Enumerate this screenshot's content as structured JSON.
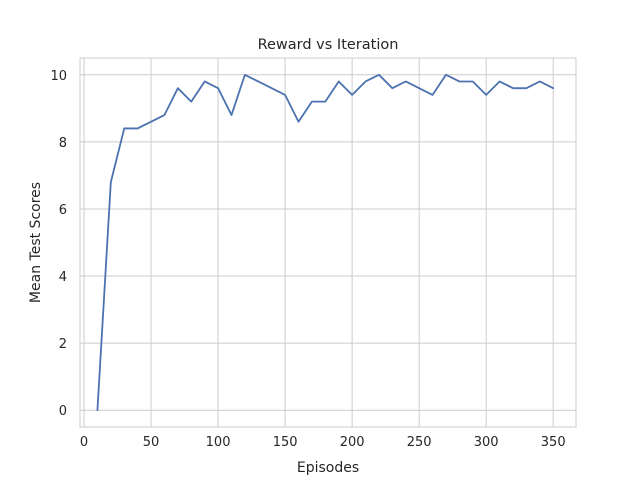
{
  "chart_data": {
    "type": "line",
    "title": "Reward vs Iteration",
    "xlabel": "Episodes",
    "ylabel": "Mean Test Scores",
    "xlim": [
      -3,
      367
    ],
    "ylim": [
      -0.5,
      10.5
    ],
    "xticks": [
      0,
      50,
      100,
      150,
      200,
      250,
      300,
      350
    ],
    "yticks": [
      0,
      2,
      4,
      6,
      8,
      10
    ],
    "grid": true,
    "line_color": "#4c72b0",
    "grid_color": "#cccccc",
    "series": [
      {
        "x": [
          10,
          20,
          30,
          40,
          50,
          60,
          70,
          80,
          90,
          100,
          110,
          120,
          130,
          140,
          150,
          160,
          170,
          180,
          190,
          200,
          210,
          220,
          230,
          240,
          250,
          260,
          270,
          280,
          290,
          300,
          310,
          320,
          330,
          340,
          350
        ],
        "y": [
          0,
          6.8,
          8.4,
          8.4,
          8.6,
          8.8,
          9.6,
          9.2,
          9.8,
          9.6,
          8.8,
          10,
          9.8,
          9.6,
          9.4,
          8.6,
          9.2,
          9.2,
          9.8,
          9.4,
          9.8,
          10,
          9.6,
          9.8,
          9.6,
          9.4,
          10,
          9.8,
          9.8,
          9.4,
          9.8,
          9.6,
          9.6,
          9.8,
          9.6
        ]
      }
    ]
  }
}
